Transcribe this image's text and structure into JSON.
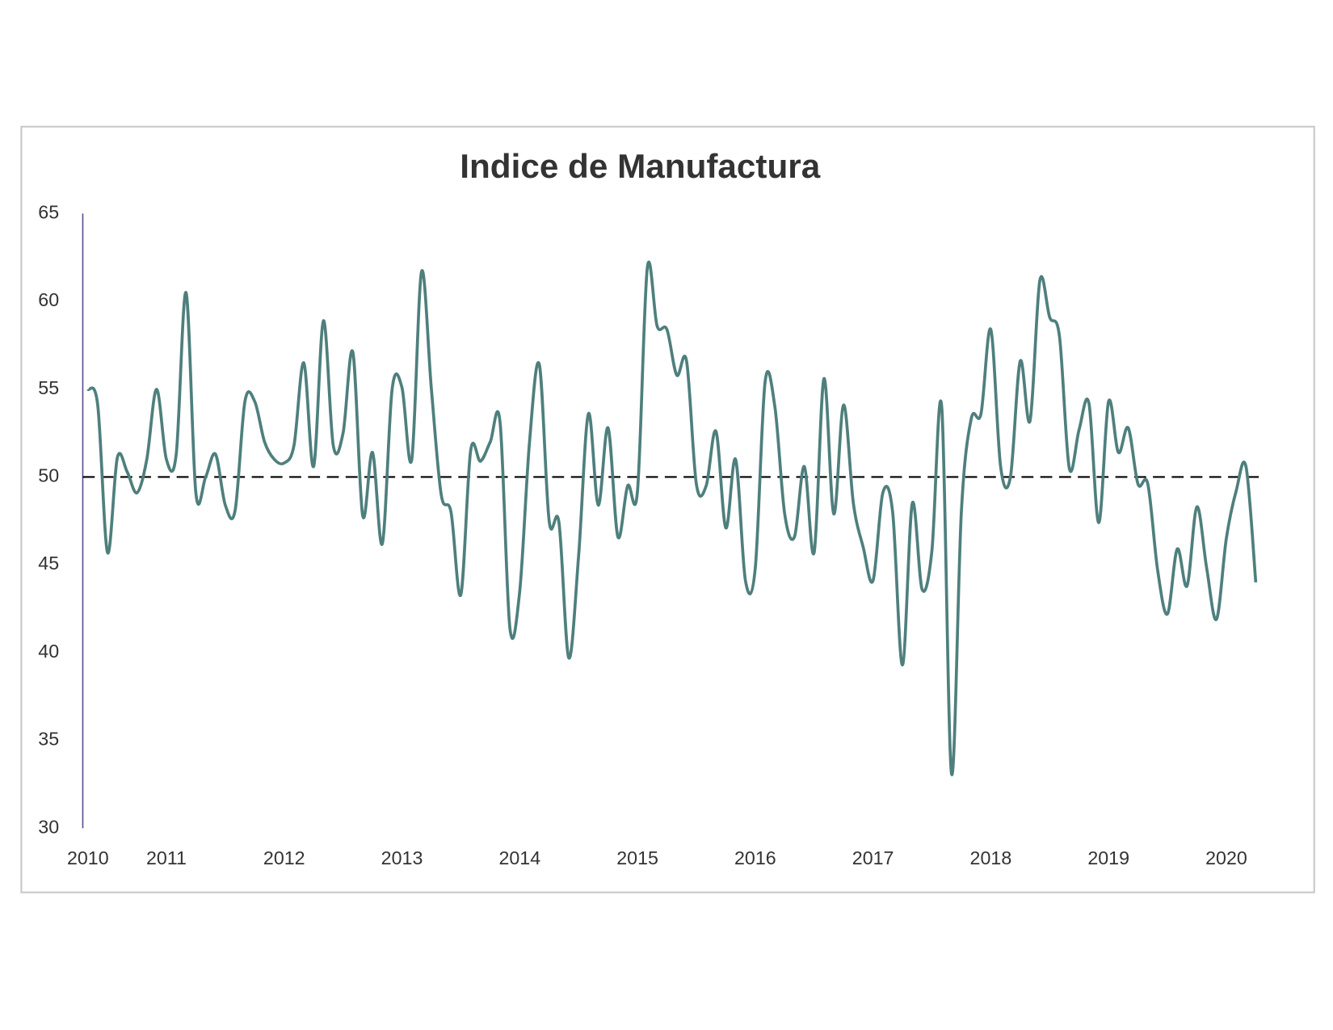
{
  "chart_data": {
    "type": "line",
    "title": "Indice de Manufactura",
    "categories": [
      "2010",
      null,
      null,
      null,
      null,
      null,
      null,
      null,
      "2011",
      null,
      null,
      null,
      null,
      null,
      null,
      null,
      null,
      null,
      null,
      null,
      "2012",
      null,
      null,
      null,
      null,
      null,
      null,
      null,
      null,
      null,
      null,
      null,
      "2013",
      null,
      null,
      null,
      null,
      null,
      null,
      null,
      null,
      null,
      null,
      null,
      "2014",
      null,
      null,
      null,
      null,
      null,
      null,
      null,
      null,
      null,
      null,
      null,
      "2015",
      null,
      null,
      null,
      null,
      null,
      null,
      null,
      null,
      null,
      null,
      null,
      "2016",
      null,
      null,
      null,
      null,
      null,
      null,
      null,
      null,
      null,
      null,
      null,
      "2017",
      null,
      null,
      null,
      null,
      null,
      null,
      null,
      null,
      null,
      null,
      null,
      "2018",
      null,
      null,
      null,
      null,
      null,
      null,
      null,
      null,
      null,
      null,
      null,
      "2019",
      null,
      null,
      null,
      null,
      null,
      null,
      null,
      null,
      null,
      null,
      null,
      "2020",
      null,
      null,
      null
    ],
    "values": [
      55.0,
      54.1,
      45.7,
      51.1,
      50.3,
      49.1,
      51.0,
      55.0,
      51.0,
      51.3,
      60.5,
      49.1,
      50.0,
      51.3,
      48.4,
      48.1,
      54.3,
      54.3,
      52.0,
      51.0,
      50.8,
      51.8,
      56.5,
      50.6,
      58.9,
      51.8,
      52.5,
      57.1,
      47.8,
      51.4,
      46.2,
      55.0,
      55.1,
      51.0,
      61.7,
      55.0,
      49.0,
      48.0,
      43.3,
      51.5,
      50.9,
      52.0,
      53.1,
      41.4,
      43.5,
      52.0,
      56.4,
      47.5,
      47.4,
      39.7,
      45.5,
      53.6,
      48.4,
      52.8,
      46.6,
      49.5,
      49.2,
      61.9,
      58.6,
      58.4,
      55.8,
      56.6,
      49.6,
      49.5,
      52.6,
      47.1,
      51.0,
      44.1,
      44.8,
      55.4,
      54.0,
      47.9,
      46.6,
      50.6,
      45.7,
      55.6,
      47.9,
      54.1,
      48.5,
      46.0,
      44.1,
      49.1,
      48.0,
      39.3,
      48.5,
      43.6,
      45.8,
      54.0,
      33.1,
      48.0,
      53.3,
      53.6,
      58.4,
      50.6,
      50.0,
      56.6,
      53.2,
      61.2,
      59.1,
      58.0,
      50.5,
      52.7,
      54.2,
      47.4,
      54.3,
      51.4,
      52.8,
      49.6,
      49.6,
      44.7,
      42.2,
      45.9,
      43.8,
      48.3,
      44.8,
      41.9,
      46.5,
      49.2,
      50.6,
      44.0
    ],
    "color": "#4e7f7d",
    "reference_line": 50,
    "ylim": [
      30,
      65
    ],
    "yticks": [
      30,
      35,
      40,
      45,
      50,
      55,
      60,
      65
    ],
    "grid": false
  }
}
